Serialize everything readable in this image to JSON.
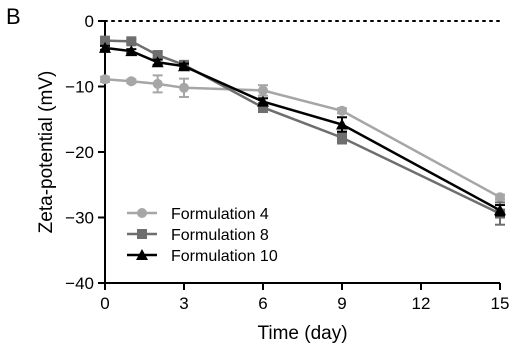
{
  "panel_label": "B",
  "chart_data": {
    "type": "line",
    "xlabel": "Time (day)",
    "ylabel": "Zeta-potential (mV)",
    "xlim": [
      0,
      15
    ],
    "ylim": [
      -40,
      0
    ],
    "xticks": [
      0,
      3,
      6,
      9,
      12,
      15
    ],
    "yticks": [
      0,
      -10,
      -20,
      -30,
      -40
    ],
    "zero_line": "dotted",
    "grid": false,
    "legend_position": "bottom-left",
    "series": [
      {
        "name": "Formulation 4",
        "color": "#a6a6a6",
        "marker": "circle",
        "x": [
          0,
          1,
          2,
          3,
          6,
          9,
          15
        ],
        "y": [
          -8.9,
          -9.2,
          -9.6,
          -10.2,
          -10.6,
          -13.7,
          -26.9
        ],
        "err": [
          0.4,
          0.3,
          1.3,
          1.4,
          0.8,
          0.4,
          0.4
        ]
      },
      {
        "name": "Formulation 8",
        "color": "#6e6e6e",
        "marker": "square",
        "x": [
          0,
          1,
          2,
          3,
          6,
          9,
          15
        ],
        "y": [
          -3.0,
          -3.1,
          -5.2,
          -6.7,
          -13.2,
          -17.8,
          -29.4
        ],
        "err": [
          0.3,
          0.3,
          0.5,
          0.6,
          0.7,
          0.9,
          1.7
        ]
      },
      {
        "name": "Formulation 10",
        "color": "#000000",
        "marker": "triangle",
        "x": [
          0,
          1,
          2,
          3,
          6,
          9,
          15
        ],
        "y": [
          -4.1,
          -4.6,
          -6.3,
          -6.9,
          -12.3,
          -15.8,
          -28.9
        ],
        "err": [
          0.3,
          0.3,
          0.4,
          0.4,
          0.5,
          1.1,
          0.8
        ]
      }
    ]
  }
}
